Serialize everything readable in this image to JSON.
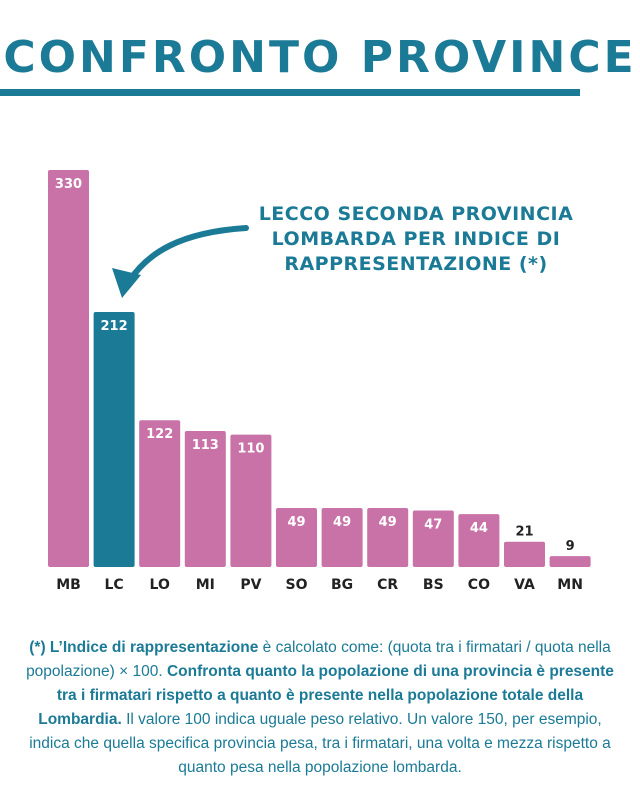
{
  "header": {
    "title": "CONFRONTO PROVINCE"
  },
  "chart_data": {
    "type": "bar",
    "title": "",
    "xlabel": "",
    "ylabel": "",
    "ylim": [
      0,
      330
    ],
    "grid": false,
    "categories": [
      "MB",
      "LC",
      "LO",
      "MI",
      "PV",
      "SO",
      "BG",
      "CR",
      "BS",
      "CO",
      "VA",
      "MN"
    ],
    "values": [
      330,
      212,
      122,
      113,
      110,
      49,
      49,
      49,
      47,
      44,
      21,
      9
    ],
    "highlight": "LC",
    "colors": {
      "bar": "#c872a7",
      "highlight": "#1b7a96",
      "label_inside": "#ffffff",
      "label_outside": "#222222",
      "axis_label": "#222222"
    },
    "annotation": [
      "LECCO SECONDA PROVINCIA",
      "LOMBARDA PER INDICE DI",
      "RAPPRESENTAZIONE (*)"
    ]
  },
  "footnote": {
    "marker": "(*)",
    "term": "L’Indice di rappresentazione",
    "text1": " è calcolato come: (quota tra i firmatari / quota nella popolazione) × 100. ",
    "bold2": "Confronta quanto la popolazione di una provincia è presente tra i firmatari rispetto a quanto è presente nella popolazione totale della Lombardia.",
    "text2": " Il valore 100 indica uguale peso relativo. Un valore 150, per esempio, indica che quella specifica provincia pesa, tra i firmatari, una volta e mezza rispetto a quanto pesa nella popolazione lombarda."
  }
}
